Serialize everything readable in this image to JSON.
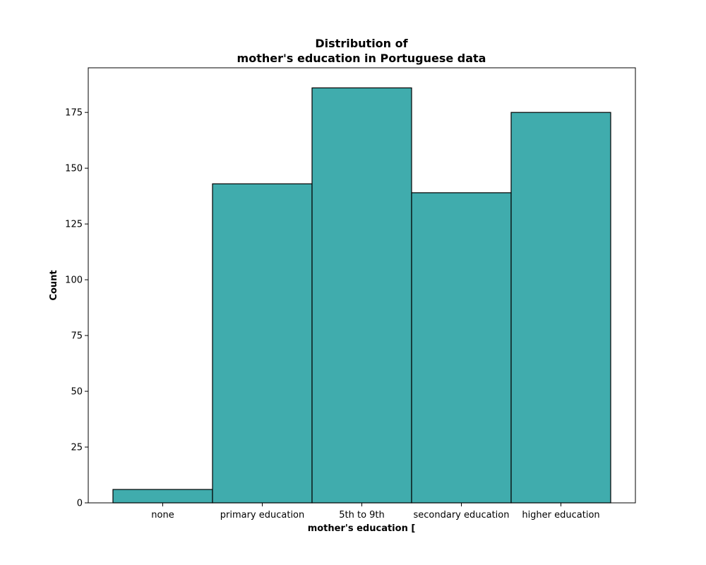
{
  "chart_data": {
    "type": "bar",
    "title_lines": [
      "Distribution of",
      "mother's education in Portuguese data"
    ],
    "xlabel": "mother's education [",
    "ylabel": "Count",
    "categories": [
      "none",
      "primary education",
      "5th to 9th",
      "secondary education",
      "higher education"
    ],
    "values": [
      6,
      143,
      186,
      139,
      175
    ],
    "ylim": [
      0,
      195
    ],
    "yticks": [
      0,
      25,
      50,
      75,
      100,
      125,
      150,
      175
    ],
    "grid": false,
    "bar_color": "#40acad",
    "edge_color": "#000000"
  }
}
